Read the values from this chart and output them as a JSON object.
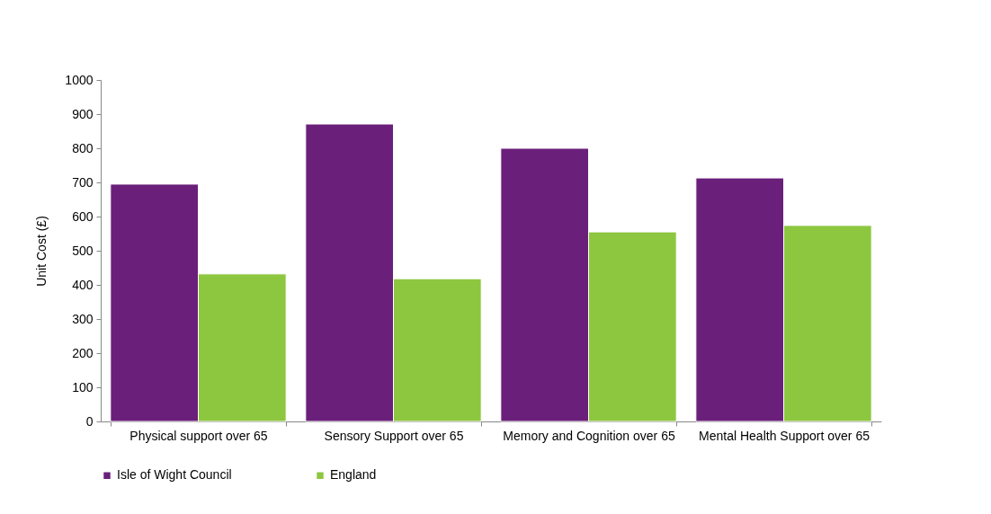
{
  "chart_data": {
    "type": "bar",
    "ylabel": "Unit Cost (£)",
    "categories": [
      "Physical support over 65",
      "Sensory Support over 65",
      "Memory and Cognition over 65",
      "Mental Health Support over 65"
    ],
    "series": [
      {
        "name": "Isle of Wight Council",
        "color": "#6a1f7a",
        "values": [
          695,
          871,
          800,
          713
        ]
      },
      {
        "name": "England",
        "color": "#8dc63f",
        "values": [
          432,
          418,
          555,
          574
        ]
      }
    ],
    "ylim": [
      0,
      1000
    ],
    "yticks": [
      0,
      100,
      200,
      300,
      400,
      500,
      600,
      700,
      800,
      900,
      1000
    ],
    "grid": false,
    "legend": "bottom"
  }
}
